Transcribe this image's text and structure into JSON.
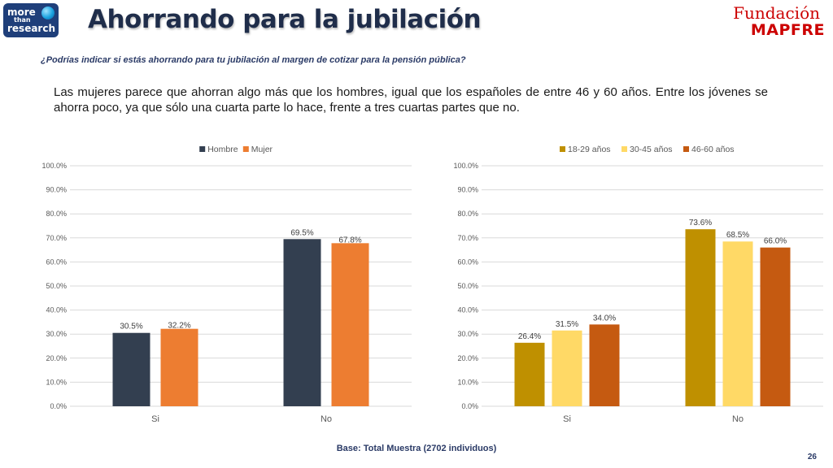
{
  "header": {
    "logo": {
      "line1": "more",
      "line2": "than",
      "line3": "research"
    },
    "title": "Ahorrando para la jubilación",
    "brand": {
      "top": "Fundación",
      "bottom": "MAPFRE"
    }
  },
  "question": "¿Podrías indicar si estás ahorrando para tu jubilación al margen de cotizar para la pensión pública?",
  "summary": "Las mujeres parece que ahorran algo más que los hombres, igual que los españoles de entre 46 y 60 años. Entre los jóvenes se ahorra poco, ya que sólo una cuarta parte lo hace, frente a tres cuartas partes que no.",
  "chart_data": [
    {
      "type": "bar",
      "categories": [
        "Si",
        "No"
      ],
      "series": [
        {
          "name": "Hombre",
          "values": [
            30.5,
            69.5
          ],
          "labels": [
            "30.5%",
            "69.5%"
          ],
          "color": "#333f50"
        },
        {
          "name": "Mujer",
          "values": [
            32.2,
            67.8
          ],
          "labels": [
            "32.2%",
            "67.8%"
          ],
          "color": "#ed7d31"
        }
      ],
      "ylim": [
        0,
        100
      ],
      "yticks": [
        "0.0%",
        "10.0%",
        "20.0%",
        "30.0%",
        "40.0%",
        "50.0%",
        "60.0%",
        "70.0%",
        "80.0%",
        "90.0%",
        "100.0%"
      ],
      "grid": true,
      "legend": "top-center"
    },
    {
      "type": "bar",
      "categories": [
        "Si",
        "No"
      ],
      "series": [
        {
          "name": "18-29 años",
          "values": [
            26.4,
            73.6
          ],
          "labels": [
            "26.4%",
            "73.6%"
          ],
          "color": "#bf9000"
        },
        {
          "name": "30-45 años",
          "values": [
            31.5,
            68.5
          ],
          "labels": [
            "31.5%",
            "68.5%"
          ],
          "color": "#ffd966"
        },
        {
          "name": "46-60 años",
          "values": [
            34.0,
            66.0
          ],
          "labels": [
            "34.0%",
            "66.0%"
          ],
          "color": "#c55a11"
        }
      ],
      "ylim": [
        0,
        100
      ],
      "yticks": [
        "0.0%",
        "10.0%",
        "20.0%",
        "30.0%",
        "40.0%",
        "50.0%",
        "60.0%",
        "70.0%",
        "80.0%",
        "90.0%",
        "100.0%"
      ],
      "grid": true,
      "legend": "top-center"
    }
  ],
  "footer": {
    "base_note": "Base: Total Muestra (2702 individuos)",
    "page_number": "26"
  }
}
